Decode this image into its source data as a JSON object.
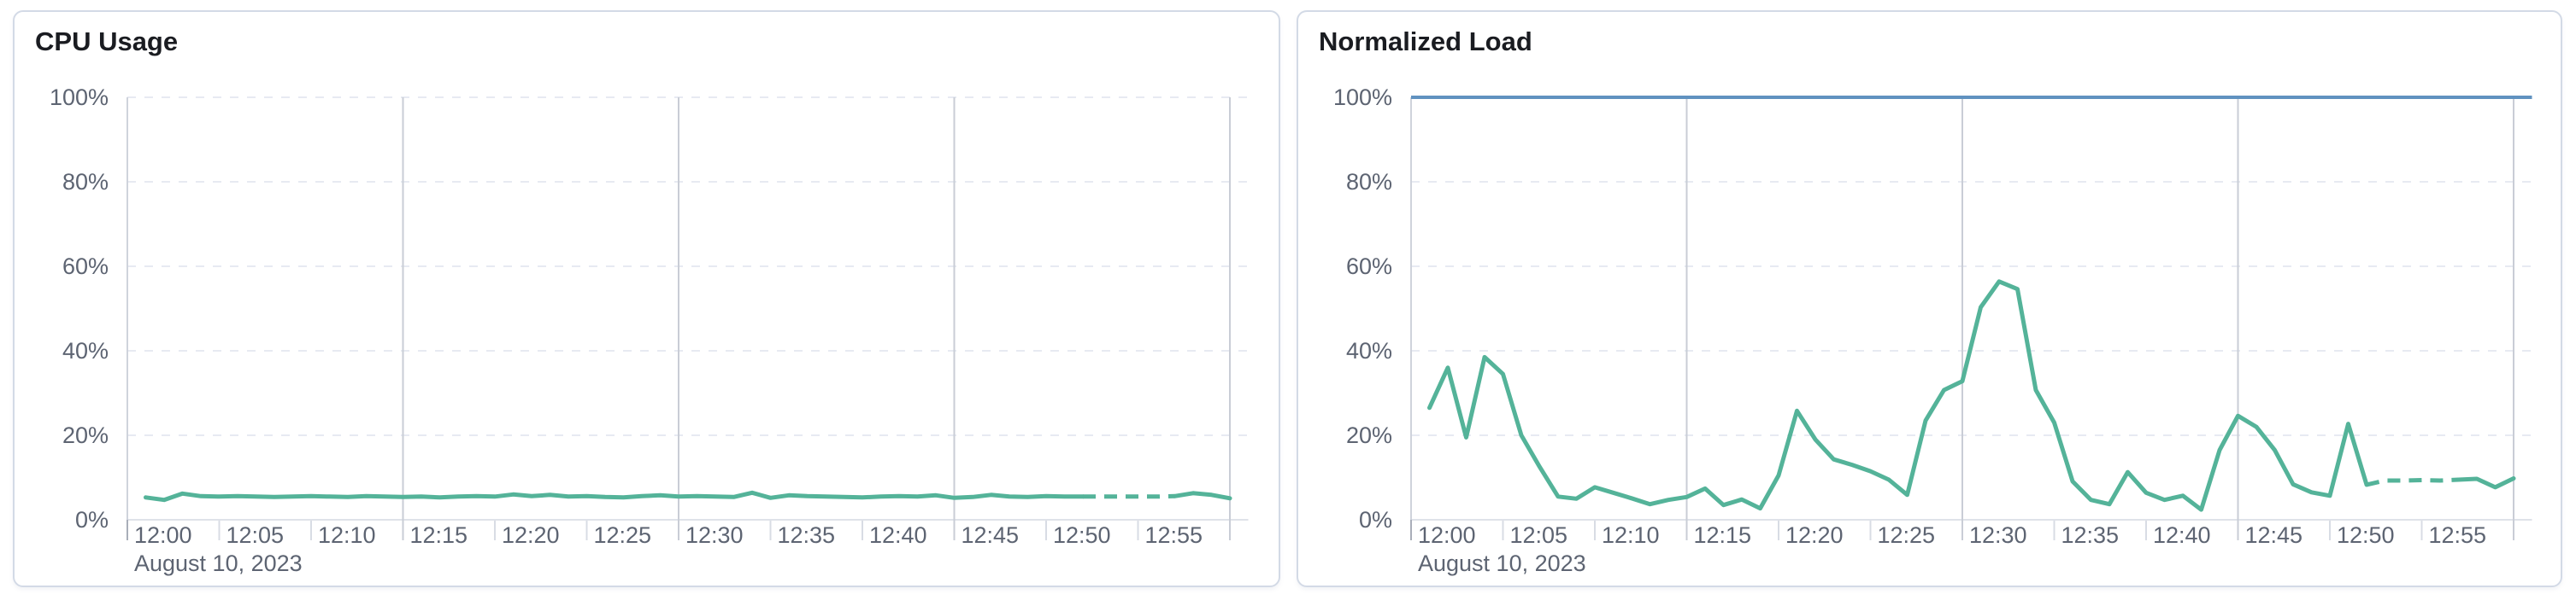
{
  "page": {
    "background": "#ffffff"
  },
  "panels": [
    {
      "title": "CPU Usage"
    },
    {
      "title": "Normalized Load"
    }
  ],
  "chart_data": [
    {
      "type": "line",
      "title": "CPU Usage",
      "legend_position": "none",
      "grid": {
        "horizontal": "dashed",
        "vertical_major_minutes": [
          15,
          30,
          45,
          60
        ]
      },
      "x_axis": {
        "date_label": "August 10, 2023",
        "tick_minutes": [
          0,
          5,
          10,
          15,
          20,
          25,
          30,
          35,
          40,
          45,
          50,
          55
        ],
        "tick_labels": [
          "12:00",
          "12:05",
          "12:10",
          "12:15",
          "12:20",
          "12:25",
          "12:30",
          "12:35",
          "12:40",
          "12:45",
          "12:50",
          "12:55"
        ],
        "domain_minutes": [
          0,
          61
        ]
      },
      "y_axis": {
        "tick_values": [
          0,
          20,
          40,
          60,
          80,
          100
        ],
        "tick_labels": [
          "0%",
          "20%",
          "40%",
          "60%",
          "80%",
          "100%"
        ],
        "range": [
          0,
          100
        ]
      },
      "series": [
        {
          "name": "CPU Usage",
          "kind": "data-line",
          "color": "#54b399",
          "unit": "%",
          "x_start_minute": 1,
          "interval_minutes": 1,
          "dashed_segment_minutes": [
            52,
            57
          ],
          "values": [
            5.3,
            4.7,
            6.2,
            5.6,
            5.5,
            5.6,
            5.5,
            5.4,
            5.5,
            5.6,
            5.5,
            5.4,
            5.6,
            5.5,
            5.4,
            5.5,
            5.3,
            5.5,
            5.6,
            5.5,
            6.0,
            5.6,
            5.9,
            5.5,
            5.6,
            5.4,
            5.3,
            5.6,
            5.8,
            5.5,
            5.6,
            5.5,
            5.4,
            6.4,
            5.2,
            5.8,
            5.6,
            5.5,
            5.4,
            5.3,
            5.5,
            5.6,
            5.5,
            5.8,
            5.2,
            5.4,
            5.9,
            5.5,
            5.4,
            5.6,
            5.5,
            5.5,
            5.5,
            5.5,
            5.5,
            5.5,
            5.6,
            6.3,
            5.9,
            5.1
          ]
        }
      ]
    },
    {
      "type": "line",
      "title": "Normalized Load",
      "legend_position": "none",
      "grid": {
        "horizontal": "dashed",
        "vertical_major_minutes": [
          15,
          30,
          45,
          60
        ]
      },
      "x_axis": {
        "date_label": "August 10, 2023",
        "tick_minutes": [
          0,
          5,
          10,
          15,
          20,
          25,
          30,
          35,
          40,
          45,
          50,
          55
        ],
        "tick_labels": [
          "12:00",
          "12:05",
          "12:10",
          "12:15",
          "12:20",
          "12:25",
          "12:30",
          "12:35",
          "12:40",
          "12:45",
          "12:50",
          "12:55"
        ],
        "domain_minutes": [
          0,
          61
        ]
      },
      "y_axis": {
        "tick_values": [
          0,
          20,
          40,
          60,
          80,
          100
        ],
        "tick_labels": [
          "0%",
          "20%",
          "40%",
          "60%",
          "80%",
          "100%"
        ],
        "range": [
          0,
          100
        ]
      },
      "series": [
        {
          "name": "Normalized Load",
          "kind": "data-line",
          "color": "#54b399",
          "unit": "%",
          "x_start_minute": 1,
          "interval_minutes": 1,
          "dashed_segment_minutes": [
            52,
            57
          ],
          "values": [
            26.5,
            36,
            19.5,
            38.5,
            34.5,
            20,
            12.5,
            5.5,
            5,
            7.7,
            6.4,
            5.1,
            3.7,
            4.7,
            5.4,
            7.4,
            3.5,
            4.8,
            2.7,
            10.5,
            25.8,
            19,
            14.3,
            13,
            11.5,
            9.5,
            5.9,
            23.5,
            30.7,
            32.8,
            50.3,
            56.4,
            54.6,
            30.7,
            23,
            9.1,
            4.7,
            3.7,
            11.3,
            6.4,
            4.7,
            5.7,
            2.4,
            16.5,
            24.6,
            22,
            16.5,
            8.4,
            6.5,
            5.7,
            22.7,
            8.3,
            9.3,
            9.3,
            9.4,
            9.3,
            9.5,
            9.7,
            7.7,
            9.8
          ]
        },
        {
          "name": "100% reference",
          "kind": "reference-line",
          "color": "#6092c0",
          "value": 100
        }
      ]
    }
  ],
  "style": {
    "line_green": "#54b399",
    "line_blue": "#6092c0",
    "grid_dashed_color": "#e7eaf2",
    "grid_major_color": "#c9cdd6",
    "tick_minor_color": "#d8dce4",
    "axis_line_color": "#cfd3dc",
    "axis_origin_tick_color": "#a9aeb9",
    "baseline_color": "#dfe2e9",
    "label_color": "#5d6472",
    "title_color": "#1a1c21",
    "card_border": "#d3dae6",
    "card_bg": "#ffffff"
  }
}
